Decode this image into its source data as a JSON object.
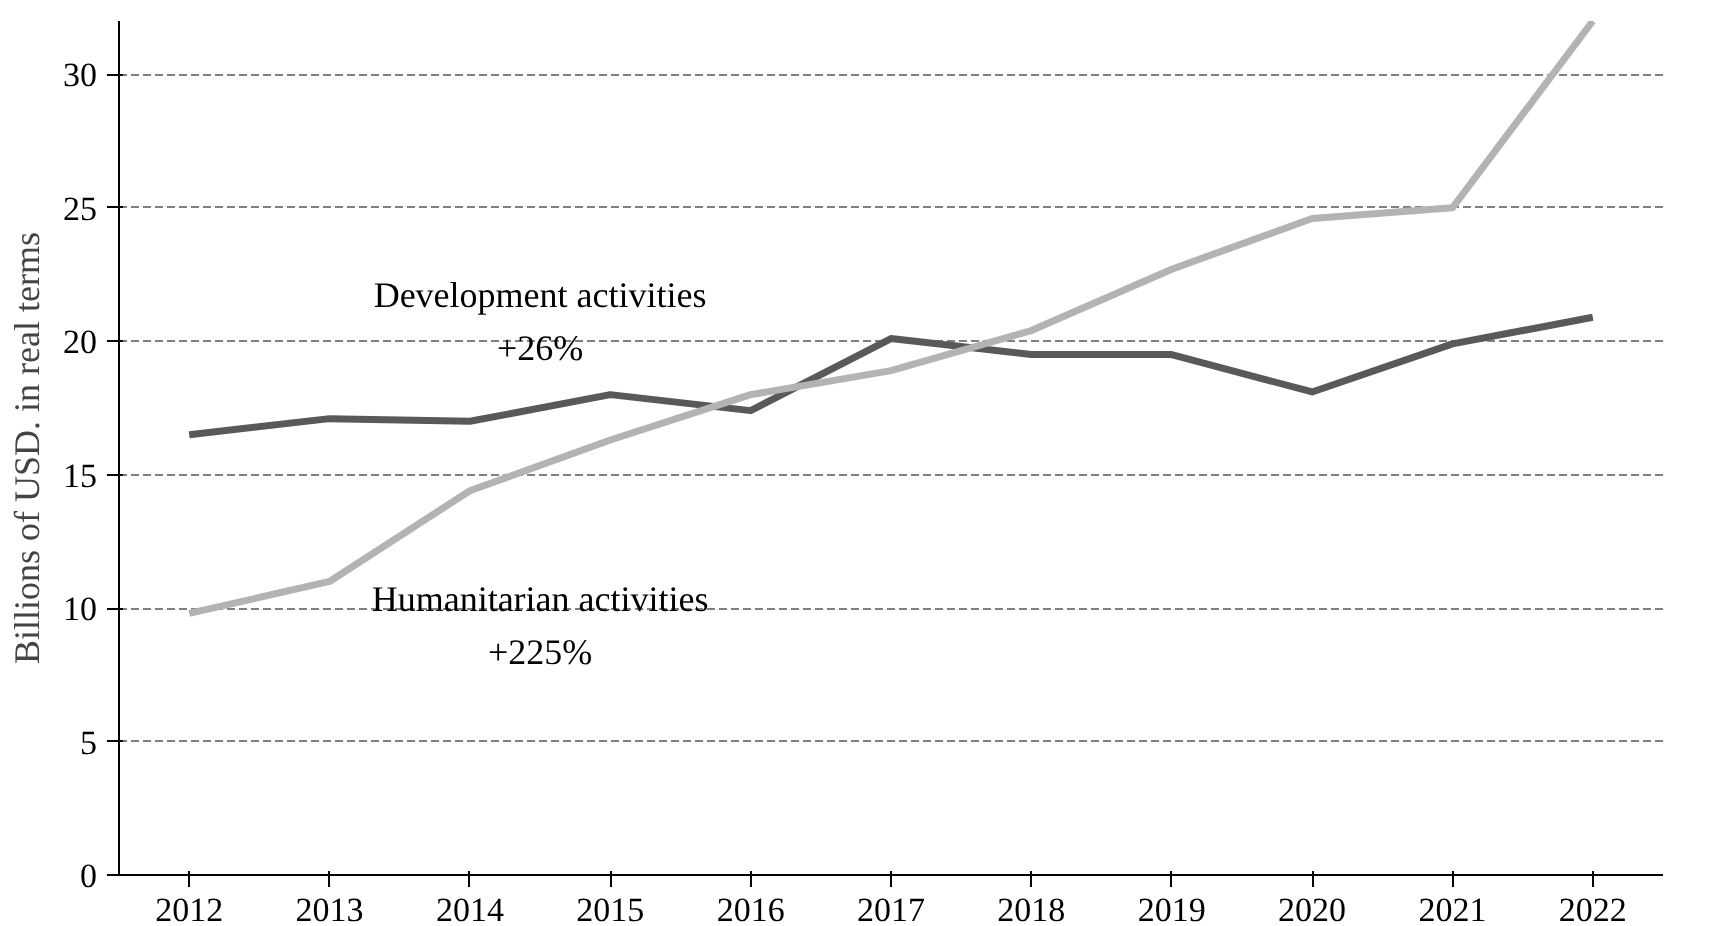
{
  "chart_data": {
    "type": "line",
    "ylabel": "Billions of USD. in real terms",
    "categories": [
      "2012",
      "2013",
      "2014",
      "2015",
      "2016",
      "2017",
      "2018",
      "2019",
      "2020",
      "2021",
      "2022"
    ],
    "series": [
      {
        "name": "Development activities",
        "color": "#595959",
        "values": [
          16.5,
          17.1,
          17.0,
          18.0,
          17.4,
          20.1,
          19.5,
          19.5,
          18.1,
          19.9,
          20.9
        ]
      },
      {
        "name": "Humanitarian activities",
        "color": "#b3b3b3",
        "values": [
          9.8,
          11.0,
          14.4,
          16.3,
          18.0,
          18.9,
          20.4,
          22.7,
          24.6,
          25.0,
          32.0
        ]
      }
    ],
    "annotations": [
      "+26%",
      "+225%"
    ],
    "ylim": [
      0,
      32
    ],
    "yticks": [
      0,
      5,
      10,
      15,
      20,
      25,
      30
    ],
    "grid": "y",
    "legend": false,
    "line_style": "solid",
    "marker": "none"
  }
}
